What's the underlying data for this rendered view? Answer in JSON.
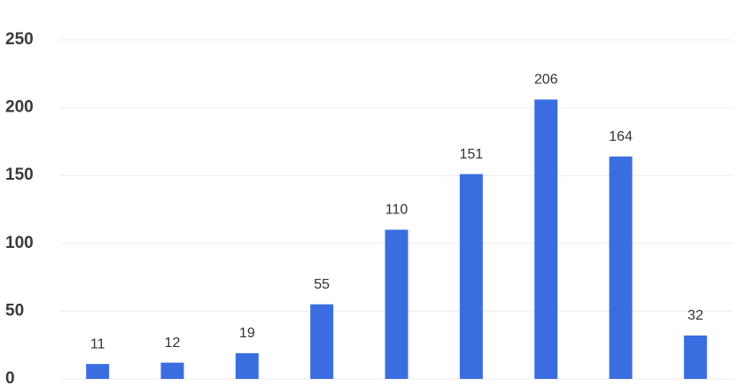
{
  "chart_data": {
    "type": "bar",
    "categories": [
      null,
      null,
      null,
      null,
      null,
      null,
      null,
      null,
      null
    ],
    "values": [
      11,
      12,
      19,
      55,
      110,
      151,
      206,
      164,
      32
    ],
    "color": "#3a6ee0",
    "ylim": [
      0,
      250
    ],
    "yticks": [
      0,
      50,
      100,
      150,
      200,
      250
    ],
    "grid": true
  }
}
